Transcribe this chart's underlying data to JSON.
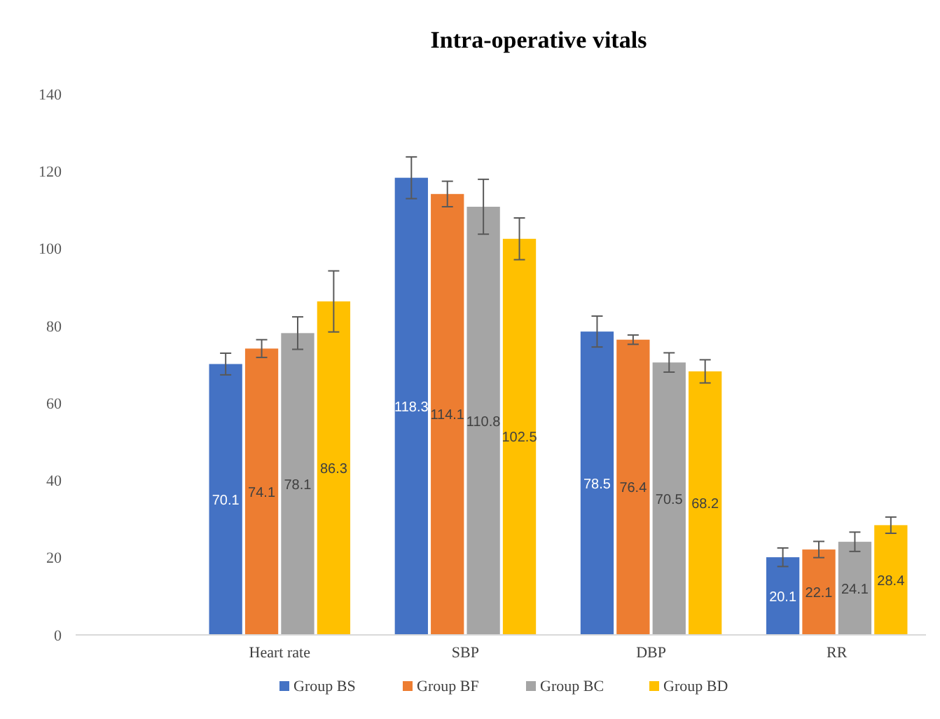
{
  "chart_data": {
    "type": "bar",
    "title": "Intra-operative vitals",
    "categories": [
      "Heart rate",
      "SBP",
      "DBP",
      "RR"
    ],
    "series": [
      {
        "name": "Group BS",
        "color": "#4472c4",
        "values": [
          70.1,
          118.3,
          78.5,
          20.1
        ],
        "errors": [
          2.8,
          5.4,
          4.0,
          2.4
        ]
      },
      {
        "name": "Group BF",
        "color": "#ed7d31",
        "values": [
          74.1,
          114.1,
          76.4,
          22.1
        ],
        "errors": [
          2.3,
          3.3,
          1.2,
          2.1
        ]
      },
      {
        "name": "Group BC",
        "color": "#a5a5a5",
        "values": [
          78.1,
          110.8,
          70.5,
          24.1
        ],
        "errors": [
          4.2,
          7.1,
          2.5,
          2.5
        ]
      },
      {
        "name": "Group BD",
        "color": "#ffc000",
        "values": [
          86.3,
          102.5,
          68.2,
          28.4
        ],
        "errors": [
          7.9,
          5.4,
          3.0,
          2.1
        ]
      }
    ],
    "ylim": [
      0,
      140
    ],
    "yticks": [
      0,
      20,
      40,
      60,
      80,
      100,
      120,
      140
    ],
    "grid": false,
    "legend": "bottom",
    "data_labels": true
  }
}
